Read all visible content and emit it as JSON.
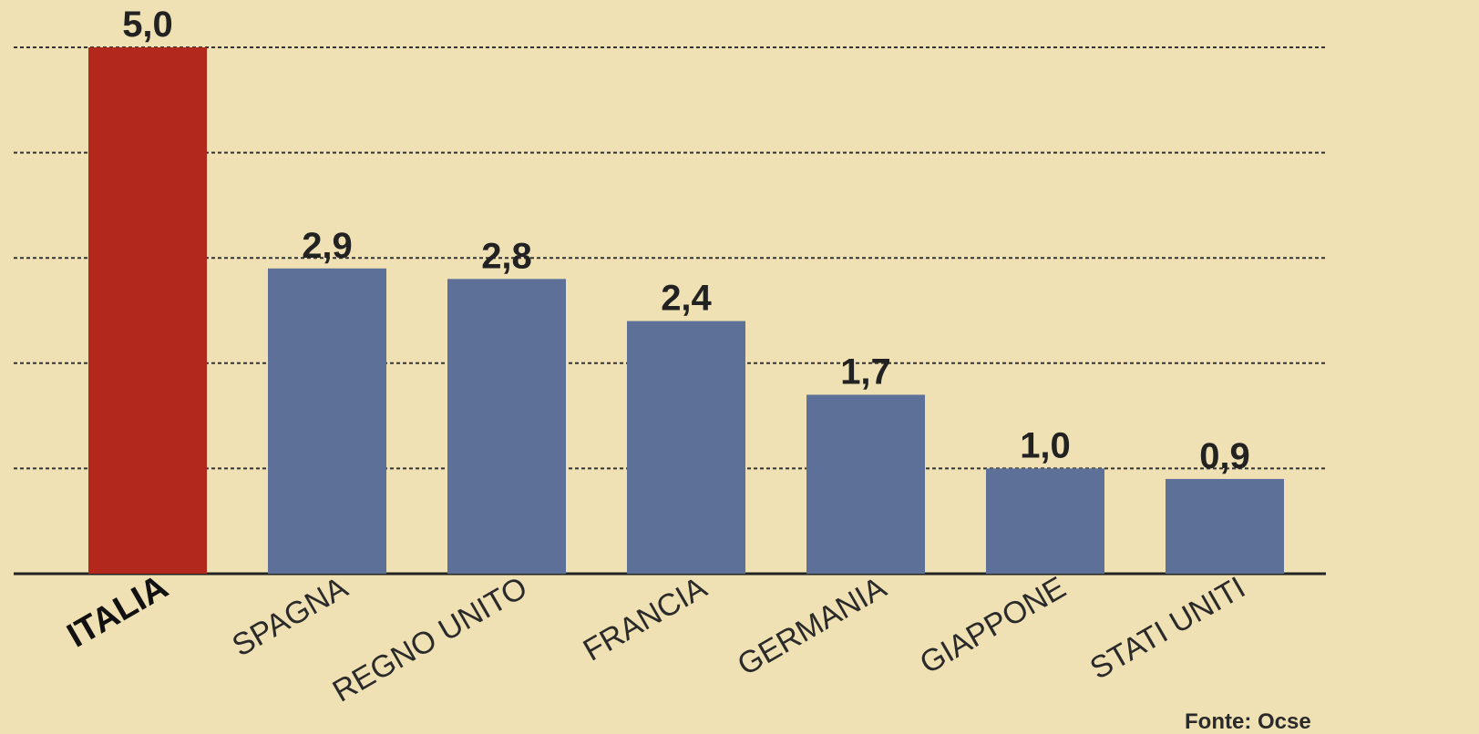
{
  "chart_data": {
    "type": "bar",
    "categories": [
      "ITALIA",
      "SPAGNA",
      "REGNO UNITO",
      "FRANCIA",
      "GERMANIA",
      "GIAPPONE",
      "STATI UNITI"
    ],
    "values": [
      5.0,
      2.9,
      2.8,
      2.4,
      1.7,
      1.0,
      0.9
    ],
    "value_labels": [
      "5,0",
      "2,9",
      "2,8",
      "2,4",
      "1,7",
      "1,0",
      "0,9"
    ],
    "colors": [
      "#b3281d",
      "#5d7198",
      "#5d7198",
      "#5d7198",
      "#5d7198",
      "#5d7198",
      "#5d7198"
    ],
    "ylim": [
      0,
      5
    ],
    "yticks": [
      0,
      1,
      2,
      3,
      4,
      5
    ],
    "grid": true,
    "source": "Fonte: Ocse"
  }
}
